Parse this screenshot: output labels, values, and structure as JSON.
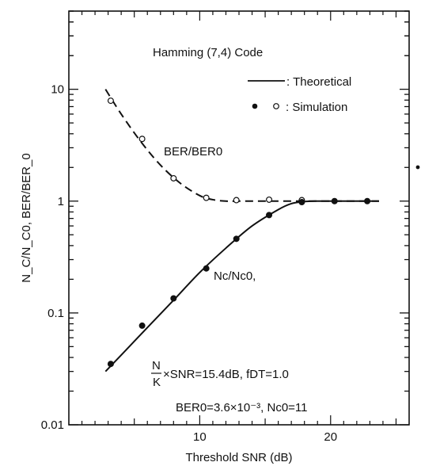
{
  "chart_data": {
    "type": "line",
    "title": "Hamming (7,4) Code",
    "xlabel": "Threshold SNR (dB)",
    "ylabel": "N_C/N_C0, BER/BER_0",
    "xscale": "linear",
    "yscale": "log",
    "xlim": [
      0,
      26
    ],
    "ylim": [
      0.01,
      50
    ],
    "x_ticks": [
      10,
      20
    ],
    "x_tick_labels": [
      "10",
      "20"
    ],
    "y_ticks": [
      0.01,
      0.1,
      1,
      10
    ],
    "y_tick_labels": [
      "0.01",
      "0.1",
      "1",
      "10"
    ],
    "legend": {
      "placement": "top-right",
      "theoretical_label": ": Theoretical",
      "simulation_label": ": Simulation"
    },
    "series": [
      {
        "name": "BER/BER0",
        "line_style": "dashed",
        "marker": "open-circle",
        "theoretical": {
          "x": [
            2.8,
            4,
            5.5,
            7,
            8.5,
            10,
            11,
            12,
            13,
            15,
            17,
            18,
            20,
            22,
            23.7
          ],
          "y": [
            10,
            6.0,
            3.4,
            2.1,
            1.45,
            1.12,
            1.03,
            1.0,
            1.0,
            1.0,
            1.0,
            1.0,
            1.0,
            1.0,
            1.0
          ]
        },
        "simulation": {
          "x": [
            3.2,
            5.6,
            8.0,
            10.5,
            12.8,
            15.3,
            17.8
          ],
          "y": [
            7.9,
            3.6,
            1.6,
            1.07,
            1.02,
            1.03,
            1.02
          ]
        }
      },
      {
        "name": "N_C/N_C0",
        "line_style": "solid",
        "marker": "filled-circle",
        "theoretical": {
          "x": [
            2.8,
            4,
            6,
            8,
            10,
            12,
            14,
            16,
            17,
            18,
            19,
            20,
            22,
            23.7
          ],
          "y": [
            0.03,
            0.042,
            0.074,
            0.13,
            0.23,
            0.38,
            0.6,
            0.84,
            0.95,
            0.99,
            1.0,
            1.0,
            1.0,
            1.0
          ]
        },
        "simulation": {
          "x": [
            3.2,
            5.6,
            8.0,
            10.5,
            12.8,
            15.3,
            17.8,
            20.3,
            22.8
          ],
          "y": [
            0.035,
            0.077,
            0.135,
            0.25,
            0.46,
            0.75,
            0.98,
            1.0,
            1.0
          ]
        }
      }
    ],
    "annotations": {
      "ber_curve_label": "BER/BER0",
      "nc_curve_label": "Nc/Nc0,",
      "param_line1_fraction_top": "N",
      "param_line1_fraction_bottom": "K",
      "param_line1_rest": "×SNR=15.4dB,   fDT=1.0",
      "param_line2": "BER0=3.6×10⁻³,   Nc0=11"
    }
  }
}
